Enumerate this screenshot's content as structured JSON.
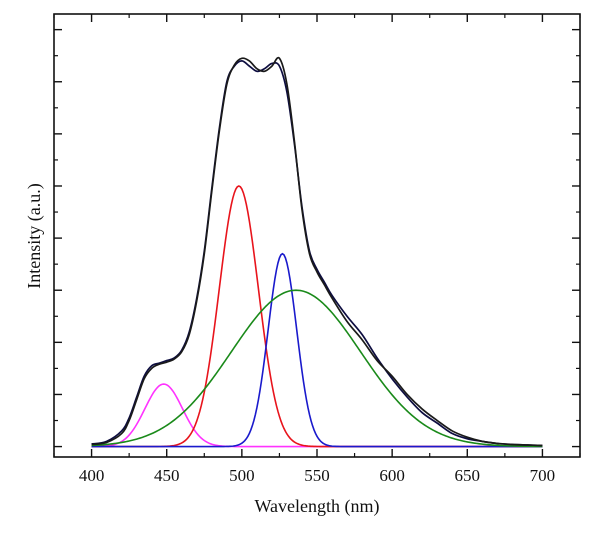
{
  "chart_data": {
    "type": "line",
    "title": "",
    "xlabel": "Wavelength (nm)",
    "ylabel": "Intensity (a.u.)",
    "xlim": [
      375,
      725
    ],
    "ylim": [
      -0.2,
      8.3
    ],
    "x_ticks": [
      400,
      450,
      500,
      550,
      600,
      650,
      700
    ],
    "x_tick_labels": [
      "400",
      "450",
      "500",
      "550",
      "600",
      "650",
      "700"
    ],
    "y_ticks": [
      0,
      1,
      2,
      3,
      4,
      5,
      6,
      7,
      8
    ],
    "y_tick_labels_shown": false,
    "grid": false,
    "legend": "none",
    "gaussian_components": [
      {
        "color": "#ff33ff",
        "center": 448,
        "amplitude": 1.2,
        "sigma": 12.5
      },
      {
        "color": "#e8141c",
        "center": 498,
        "amplitude": 5.0,
        "sigma": 13.0
      },
      {
        "color": "#1a1acc",
        "center": 527,
        "amplitude": 3.7,
        "sigma": 9.5
      },
      {
        "color": "#1a8a1a",
        "center": 536,
        "amplitude": 3.0,
        "sigma": 43.0
      }
    ],
    "series": [
      {
        "color": "#0d0d40",
        "x": [
          400,
          410,
          420,
          425,
          430,
          435,
          440,
          445,
          450,
          455,
          460,
          465,
          470,
          475,
          480,
          485,
          490,
          495,
          500,
          505,
          510,
          515,
          520,
          525,
          530,
          535,
          540,
          545,
          550,
          555,
          560,
          570,
          580,
          590,
          600,
          610,
          620,
          630,
          640,
          650,
          660,
          670,
          680,
          690,
          700
        ],
        "y": [
          0.05,
          0.1,
          0.3,
          0.55,
          0.95,
          1.35,
          1.55,
          1.6,
          1.65,
          1.7,
          1.85,
          2.2,
          2.85,
          3.75,
          4.95,
          6.1,
          7.0,
          7.3,
          7.4,
          7.3,
          7.2,
          7.25,
          7.35,
          7.3,
          6.8,
          5.8,
          4.6,
          3.75,
          3.4,
          3.15,
          2.9,
          2.5,
          2.15,
          1.7,
          1.3,
          0.95,
          0.65,
          0.45,
          0.25,
          0.15,
          0.1,
          0.06,
          0.04,
          0.03,
          0.02
        ]
      },
      {
        "color": "#1a1a1a",
        "x": [
          400,
          410,
          420,
          425,
          430,
          435,
          440,
          445,
          450,
          455,
          460,
          465,
          470,
          475,
          480,
          485,
          490,
          495,
          500,
          505,
          510,
          515,
          520,
          525,
          530,
          535,
          540,
          545,
          550,
          555,
          560,
          570,
          580,
          590,
          600,
          610,
          620,
          630,
          640,
          650,
          660,
          670,
          680,
          690,
          700
        ],
        "y": [
          0.04,
          0.08,
          0.25,
          0.5,
          0.9,
          1.3,
          1.5,
          1.58,
          1.62,
          1.68,
          1.82,
          2.15,
          2.8,
          3.7,
          4.9,
          6.05,
          6.95,
          7.32,
          7.45,
          7.4,
          7.25,
          7.2,
          7.3,
          7.45,
          6.95,
          5.85,
          4.55,
          3.7,
          3.35,
          3.1,
          2.85,
          2.4,
          2.05,
          1.65,
          1.35,
          1.0,
          0.72,
          0.5,
          0.3,
          0.18,
          0.1,
          0.06,
          0.04,
          0.03,
          0.02
        ]
      }
    ]
  }
}
